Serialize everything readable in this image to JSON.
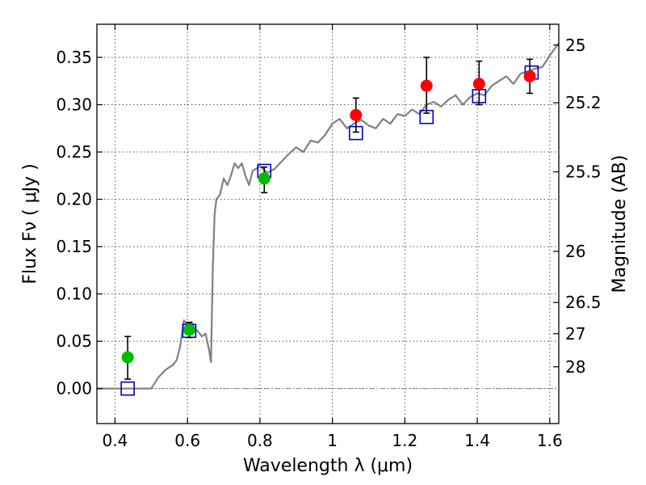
{
  "chart_data": {
    "type": "scatter",
    "xlabel": "Wavelength  λ (μm)",
    "ylabel": "Flux  Fν  ( μJy )",
    "ylabel_right": "Magnitude (AB)",
    "xlim": [
      0.35,
      1.625
    ],
    "ylim": [
      -0.037,
      0.385
    ],
    "grid": true,
    "x_ticks": [
      0.4,
      0.6,
      0.8,
      1.0,
      1.2,
      1.4,
      1.6
    ],
    "x_tick_labels": [
      "0.4",
      "0.6",
      "0.8",
      "1",
      "1.2",
      "1.4",
      "1.6"
    ],
    "y_ticks": [
      0.0,
      0.05,
      0.1,
      0.15,
      0.2,
      0.25,
      0.3,
      0.35
    ],
    "y_tick_labels": [
      "0.00",
      "0.05",
      "0.10",
      "0.15",
      "0.20",
      "0.25",
      "0.30",
      "0.35"
    ],
    "right_ticks": [
      {
        "label": "25",
        "flux": 0.363
      },
      {
        "label": "25.2",
        "flux": 0.302
      },
      {
        "label": "25.5",
        "flux": 0.229
      },
      {
        "label": "26",
        "flux": 0.145
      },
      {
        "label": "26.5",
        "flux": 0.091
      },
      {
        "label": "27",
        "flux": 0.058
      },
      {
        "label": "28",
        "flux": 0.023
      }
    ],
    "colors": {
      "model": "#808080",
      "green": "#00bb00",
      "red": "#ff0000",
      "square": "#0000cc",
      "errorbar": "#000000",
      "grid": "#555555"
    },
    "series": [
      {
        "type": "line",
        "x": [
          0.35,
          0.38,
          0.41,
          0.44,
          0.47,
          0.5,
          0.52,
          0.54,
          0.56,
          0.57,
          0.58,
          0.59,
          0.6,
          0.61,
          0.62,
          0.63,
          0.64,
          0.65,
          0.66,
          0.665,
          0.67,
          0.675,
          0.68,
          0.69,
          0.7,
          0.71,
          0.72,
          0.73,
          0.74,
          0.75,
          0.76,
          0.77,
          0.78,
          0.8,
          0.82,
          0.84,
          0.86,
          0.88,
          0.9,
          0.92,
          0.94,
          0.96,
          0.98,
          1.0,
          1.02,
          1.04,
          1.06,
          1.08,
          1.1,
          1.12,
          1.14,
          1.16,
          1.18,
          1.2,
          1.22,
          1.24,
          1.26,
          1.28,
          1.3,
          1.32,
          1.34,
          1.36,
          1.38,
          1.4,
          1.42,
          1.44,
          1.46,
          1.48,
          1.5,
          1.52,
          1.54,
          1.56,
          1.58,
          1.6,
          1.625
        ],
        "y": [
          0.0,
          0.0,
          0.0,
          0.0,
          0.0,
          0.0,
          0.012,
          0.02,
          0.025,
          0.03,
          0.045,
          0.072,
          0.068,
          0.07,
          0.064,
          0.06,
          0.055,
          0.058,
          0.04,
          0.028,
          0.13,
          0.185,
          0.2,
          0.205,
          0.222,
          0.215,
          0.225,
          0.238,
          0.233,
          0.238,
          0.225,
          0.215,
          0.23,
          0.235,
          0.228,
          0.232,
          0.24,
          0.248,
          0.255,
          0.25,
          0.262,
          0.26,
          0.268,
          0.28,
          0.285,
          0.275,
          0.28,
          0.284,
          0.278,
          0.275,
          0.285,
          0.28,
          0.29,
          0.288,
          0.295,
          0.29,
          0.3,
          0.303,
          0.298,
          0.305,
          0.31,
          0.3,
          0.308,
          0.312,
          0.31,
          0.32,
          0.325,
          0.33,
          0.322,
          0.333,
          0.335,
          0.338,
          0.34,
          0.352,
          0.365
        ]
      },
      {
        "type": "scatter",
        "marker": "circle",
        "color": "green",
        "x": [
          0.435,
          0.605,
          0.812
        ],
        "y": [
          0.033,
          0.062,
          0.222
        ],
        "yerr_low": [
          0.023,
          0.008,
          0.015
        ],
        "yerr_high": [
          0.022,
          0.008,
          0.012
        ]
      },
      {
        "type": "scatter",
        "marker": "circle",
        "color": "red",
        "x": [
          1.065,
          1.26,
          1.405,
          1.545
        ],
        "y": [
          0.289,
          0.32,
          0.322,
          0.33
        ],
        "yerr_low": [
          0.018,
          0.029,
          0.022,
          0.018
        ],
        "yerr_high": [
          0.018,
          0.03,
          0.024,
          0.018
        ]
      },
      {
        "type": "scatter",
        "marker": "square",
        "color": "square",
        "x": [
          0.435,
          0.605,
          0.812,
          1.065,
          1.26,
          1.405,
          1.55
        ],
        "y": [
          0.0,
          0.061,
          0.23,
          0.27,
          0.287,
          0.309,
          0.334
        ]
      }
    ]
  }
}
